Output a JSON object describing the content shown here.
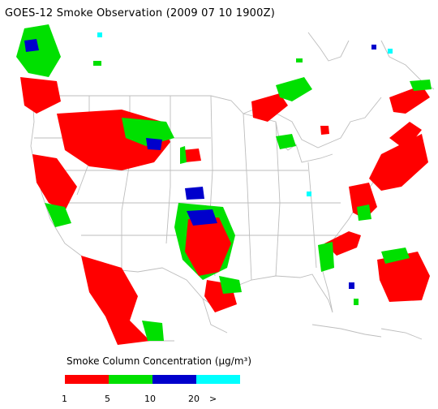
{
  "title": "GOES-12 Smoke Observation (2009 07 10  1900Z)",
  "legend": {
    "title": "Smoke Column Concentration (μg/m³)",
    "bins": [
      {
        "from": "1",
        "to": "5",
        "color": "#ff0000"
      },
      {
        "from": "5",
        "to": "10",
        "color": "#00e000"
      },
      {
        "from": "10",
        "to": "20",
        "color": "#0000cc"
      },
      {
        "from": "20",
        "to": ">",
        "color": "#00ffff"
      }
    ],
    "ticks": [
      "1",
      "5",
      "10",
      "20",
      ">"
    ]
  }
}
